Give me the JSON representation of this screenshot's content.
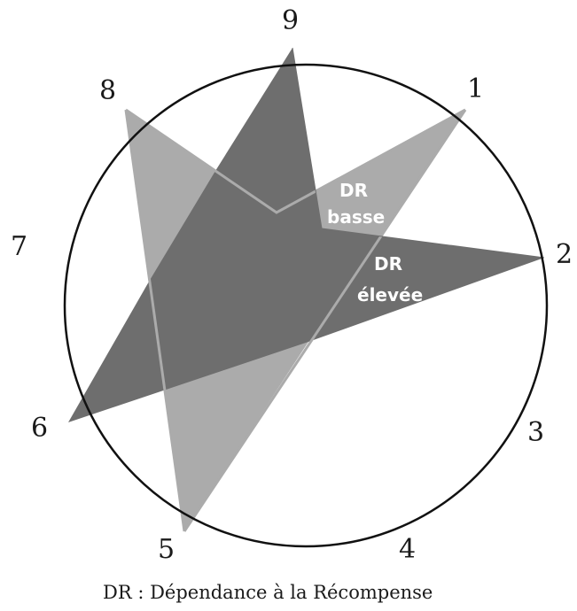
{
  "diagram": {
    "points": [
      {
        "id": "1",
        "label": "1"
      },
      {
        "id": "2",
        "label": "2"
      },
      {
        "id": "3",
        "label": "3"
      },
      {
        "id": "4",
        "label": "4"
      },
      {
        "id": "5",
        "label": "5"
      },
      {
        "id": "6",
        "label": "6"
      },
      {
        "id": "7",
        "label": "7"
      },
      {
        "id": "8",
        "label": "8"
      },
      {
        "id": "9",
        "label": "9"
      }
    ],
    "shapes": [
      {
        "name": "low-reward-dependence-star",
        "vertices": [
          "8",
          "1",
          "5"
        ],
        "color": "#ababab"
      },
      {
        "name": "high-reward-dependence-star",
        "vertices": [
          "9",
          "2",
          "6"
        ],
        "color": "#6e6e6e"
      }
    ],
    "labels": {
      "low": {
        "line1": "DR",
        "line2": "basse"
      },
      "high": {
        "line1": "DR",
        "line2": "élevée"
      }
    },
    "caption": "DR : Dépendance à la Récompense"
  }
}
